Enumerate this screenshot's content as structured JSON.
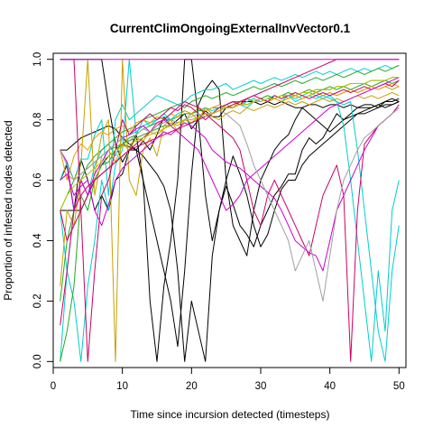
{
  "chart_data": {
    "type": "line",
    "title": "CurrentClimOngoingExternalInvVector0.1",
    "xlabel": "Time since incursion detected (timesteps)",
    "ylabel": "Proportion of infested nodes detected",
    "xlim": [
      0,
      51
    ],
    "ylim": [
      -0.02,
      1.02
    ],
    "xticks": [
      0,
      10,
      20,
      30,
      40,
      50
    ],
    "yticks": [
      0.0,
      0.2,
      0.4,
      0.6,
      0.8,
      1.0
    ],
    "x": [
      1,
      2,
      3,
      4,
      5,
      6,
      7,
      8,
      9,
      10,
      11,
      12,
      13,
      14,
      15,
      16,
      17,
      18,
      19,
      20,
      21,
      22,
      23,
      24,
      25,
      26,
      27,
      28,
      29,
      30,
      31,
      32,
      33,
      34,
      35,
      36,
      37,
      38,
      39,
      40,
      41,
      42,
      43,
      44,
      45,
      46,
      47,
      48,
      49,
      50
    ],
    "grid": false,
    "legend": "none",
    "series": [
      {
        "color": "#000000",
        "values": [
          1.0,
          1.0,
          1.0,
          1.0,
          1.0,
          1.0,
          1.0,
          0.85,
          0.72,
          0.66,
          0.7,
          0.7,
          0.73,
          0.7,
          0.75,
          0.81,
          0.78,
          0.8,
          0.82,
          0.77,
          0.8,
          0.83,
          0.81,
          0.81,
          0.84,
          0.84,
          0.86,
          0.86,
          0.86,
          0.85,
          0.86,
          0.85,
          0.86,
          0.85,
          0.84,
          0.84,
          0.85,
          0.85,
          0.84,
          0.85,
          0.85,
          0.84,
          0.85,
          0.84,
          0.84,
          0.84,
          0.85,
          0.84,
          0.85,
          0.86
        ]
      },
      {
        "color": "#000000",
        "values": [
          0.5,
          0.5,
          0.5,
          0.67,
          0.6,
          0.5,
          0.55,
          0.5,
          0.6,
          0.62,
          0.7,
          0.75,
          0.6,
          0.2,
          0.0,
          0.25,
          0.4,
          0.6,
          1.0,
          1.0,
          0.8,
          0.55,
          0.4,
          0.5,
          0.58,
          0.52,
          0.45,
          0.42,
          0.38,
          0.45,
          0.5,
          0.55,
          0.58,
          0.62,
          0.62,
          0.7,
          0.74,
          0.72,
          0.74,
          0.78,
          0.82,
          0.8,
          0.82,
          0.84,
          0.85,
          0.85,
          0.84,
          0.86,
          0.87,
          0.86
        ]
      },
      {
        "color": "#000000",
        "values": [
          0.6,
          0.65,
          0.5,
          0.5,
          0.55,
          0.6,
          0.65,
          0.68,
          0.7,
          0.72,
          0.71,
          0.7,
          0.68,
          0.65,
          0.62,
          0.58,
          0.5,
          0.3,
          0.0,
          0.2,
          0.1,
          0.0,
          0.35,
          0.5,
          0.6,
          0.68,
          0.62,
          0.55,
          0.45,
          0.38,
          0.42,
          0.5,
          0.57,
          0.6,
          0.6,
          0.65,
          0.68,
          0.7,
          0.72,
          0.74,
          0.76,
          0.78,
          0.8,
          0.82,
          0.82,
          0.83,
          0.84,
          0.85,
          0.85,
          0.86
        ]
      },
      {
        "color": "#000000",
        "values": [
          0.7,
          0.7,
          0.72,
          0.74,
          0.75,
          0.76,
          0.77,
          0.78,
          0.77,
          0.74,
          0.72,
          0.7,
          0.6,
          0.5,
          0.4,
          0.3,
          0.2,
          0.05,
          0.3,
          0.62,
          0.85,
          0.9,
          0.93,
          0.9,
          0.6,
          0.45,
          0.4,
          0.35,
          0.5,
          0.6,
          0.65,
          0.7,
          0.73,
          0.75,
          0.8,
          0.84,
          0.82,
          0.8,
          0.78,
          0.76,
          0.78,
          0.8,
          0.81,
          0.82,
          0.83,
          0.84,
          0.85,
          0.86,
          0.86,
          0.87
        ]
      },
      {
        "color": "#00CDCD",
        "values": [
          0.6,
          0.66,
          0.6,
          0.67,
          0.67,
          0.75,
          0.8,
          0.55,
          0.8,
          0.85,
          0.8,
          0.82,
          0.84,
          0.86,
          0.88,
          0.87,
          0.86,
          0.85,
          0.86,
          0.88,
          0.89,
          0.9,
          0.9,
          0.91,
          0.92,
          0.9,
          0.91,
          0.92,
          0.93,
          0.92,
          0.93,
          0.94,
          0.93,
          0.94,
          0.95,
          0.94,
          0.95,
          0.96,
          0.95,
          0.96,
          0.95,
          0.96,
          0.97,
          0.96,
          0.97,
          0.96,
          0.97,
          0.98,
          0.97,
          0.98
        ]
      },
      {
        "color": "#00CDCD",
        "values": [
          0.5,
          0.3,
          0.2,
          0.0,
          0.25,
          0.4,
          0.6,
          0.5,
          0.65,
          0.7,
          1.0,
          0.75,
          0.8,
          0.78,
          0.8,
          0.82,
          0.8,
          0.79,
          0.8,
          0.82,
          0.83,
          0.84,
          0.82,
          0.83,
          0.85,
          0.86,
          0.85,
          0.84,
          0.86,
          0.87,
          0.88,
          0.87,
          0.86,
          0.88,
          0.87,
          0.88,
          0.89,
          0.88,
          0.87,
          0.88,
          0.86,
          0.78,
          0.6,
          0.4,
          0.2,
          0.0,
          0.3,
          0.1,
          0.5,
          0.6
        ]
      },
      {
        "color": "#00CDCD",
        "values": [
          0.0,
          0.3,
          0.5,
          0.6,
          0.55,
          0.65,
          0.7,
          0.72,
          0.68,
          0.74,
          0.75,
          0.76,
          0.78,
          0.79,
          0.8,
          0.81,
          0.8,
          0.82,
          0.83,
          0.82,
          0.83,
          0.84,
          0.83,
          0.84,
          0.85,
          0.86,
          0.85,
          0.86,
          0.87,
          0.86,
          0.87,
          0.88,
          0.87,
          0.88,
          0.86,
          0.87,
          0.88,
          0.87,
          0.88,
          0.87,
          0.86,
          0.85,
          0.86,
          0.7,
          0.5,
          0.3,
          0.1,
          0.0,
          0.3,
          0.45
        ]
      },
      {
        "color": "#22AA22",
        "values": [
          0.2,
          0.4,
          0.5,
          0.6,
          0.65,
          0.68,
          0.7,
          0.72,
          0.74,
          0.76,
          0.77,
          0.78,
          0.8,
          0.81,
          0.82,
          0.83,
          0.84,
          0.85,
          0.84,
          0.86,
          0.87,
          0.88,
          0.87,
          0.88,
          0.89,
          0.88,
          0.89,
          0.9,
          0.91,
          0.9,
          0.91,
          0.92,
          0.91,
          0.92,
          0.93,
          0.92,
          0.93,
          0.94,
          0.93,
          0.94,
          0.95,
          0.94,
          0.95,
          0.96,
          0.95,
          0.96,
          0.97,
          0.96,
          0.97,
          0.98
        ]
      },
      {
        "color": "#22AA22",
        "values": [
          0.0,
          0.1,
          0.25,
          0.55,
          0.5,
          0.6,
          0.65,
          0.66,
          0.7,
          0.72,
          0.74,
          0.75,
          0.77,
          0.78,
          0.79,
          0.8,
          0.8,
          0.81,
          0.82,
          0.82,
          0.83,
          0.83,
          0.84,
          0.84,
          0.85,
          0.86,
          0.86,
          0.87,
          0.86,
          0.87,
          0.88,
          0.87,
          0.88,
          0.89,
          0.88,
          0.89,
          0.9,
          0.89,
          0.9,
          0.91,
          0.9,
          0.91,
          0.9,
          0.91,
          0.92,
          0.91,
          0.92,
          0.93,
          0.92,
          0.93
        ]
      },
      {
        "color": "#22AA22",
        "values": [
          0.5,
          0.55,
          0.6,
          0.62,
          0.64,
          0.66,
          0.68,
          0.7,
          0.71,
          0.72,
          0.73,
          0.74,
          0.75,
          0.76,
          0.77,
          0.78,
          0.78,
          0.79,
          0.8,
          0.8,
          0.81,
          0.82,
          0.82,
          0.83,
          0.84,
          0.84,
          0.85,
          0.85,
          0.86,
          0.86,
          0.87,
          0.87,
          0.88,
          0.88,
          0.88,
          0.89,
          0.89,
          0.9,
          0.9,
          0.9,
          0.91,
          0.91,
          0.92,
          0.92,
          0.92,
          0.93,
          0.93,
          0.93,
          0.94,
          0.94
        ]
      },
      {
        "color": "#C8A000",
        "values": [
          0.25,
          0.5,
          0.45,
          0.6,
          0.55,
          0.62,
          0.75,
          0.8,
          0.0,
          1.0,
          0.6,
          0.55,
          0.7,
          0.74,
          0.68,
          0.78,
          0.8,
          0.76,
          0.8,
          0.82,
          0.8,
          0.84,
          0.82,
          0.83,
          0.85,
          0.84,
          0.86,
          0.85,
          0.86,
          0.87,
          0.86,
          0.87,
          0.88,
          0.87,
          0.88,
          0.87,
          0.88,
          0.89,
          0.88,
          0.89,
          0.88,
          0.89,
          0.9,
          0.89,
          0.9,
          0.91,
          0.9,
          0.91,
          0.9,
          0.91
        ]
      },
      {
        "color": "#C8A000",
        "values": [
          0.6,
          0.62,
          0.6,
          0.65,
          1.0,
          0.55,
          0.68,
          0.7,
          0.66,
          0.72,
          0.7,
          0.74,
          0.73,
          0.76,
          0.75,
          0.77,
          0.79,
          0.78,
          0.8,
          0.79,
          0.81,
          0.82,
          0.81,
          0.8,
          0.82,
          0.83,
          0.82,
          0.84,
          0.83,
          0.84,
          0.85,
          0.84,
          0.85,
          0.86,
          0.85,
          0.86,
          0.85,
          0.86,
          0.87,
          0.86,
          0.87,
          0.86,
          0.87,
          0.88,
          0.87,
          0.88,
          0.87,
          0.88,
          0.89,
          0.88
        ]
      },
      {
        "color": "#E8A000",
        "values": [
          0.7,
          0.6,
          0.68,
          0.72,
          0.7,
          0.74,
          0.76,
          0.75,
          0.77,
          0.78,
          0.76,
          0.79,
          0.8,
          0.79,
          0.81,
          0.8,
          0.82,
          0.81,
          0.83,
          0.82,
          0.84,
          0.83,
          0.84,
          0.85,
          0.84,
          0.85,
          0.86,
          0.85,
          0.86,
          0.87,
          0.86,
          0.87,
          0.86,
          0.87,
          0.88,
          0.87,
          0.88,
          0.89,
          0.88,
          0.89,
          0.88,
          0.89,
          0.9,
          0.89,
          0.9,
          0.91,
          0.9,
          0.91,
          0.92,
          0.91
        ]
      },
      {
        "color": "#CC0066",
        "values": [
          1.0,
          1.0,
          1.0,
          0.5,
          0.0,
          0.3,
          0.55,
          0.6,
          0.7,
          0.8,
          0.75,
          0.78,
          0.8,
          0.82,
          0.8,
          0.82,
          0.84,
          0.83,
          0.85,
          0.84,
          0.82,
          0.8,
          0.82,
          0.84,
          0.85,
          0.86,
          0.85,
          0.87,
          0.88,
          0.87,
          0.86,
          0.88,
          0.87,
          0.88,
          0.89,
          0.88,
          0.87,
          0.88,
          0.89,
          0.88,
          0.89,
          0.9,
          0.89,
          0.9,
          0.91,
          0.9,
          0.91,
          0.92,
          0.91,
          0.93
        ]
      },
      {
        "color": "#CC0066",
        "values": [
          0.5,
          0.4,
          0.45,
          0.5,
          0.55,
          0.6,
          0.62,
          0.64,
          0.66,
          0.68,
          0.7,
          0.72,
          0.74,
          0.76,
          0.78,
          0.8,
          0.82,
          0.84,
          0.86,
          0.85,
          0.84,
          0.82,
          0.8,
          0.78,
          0.76,
          0.74,
          0.7,
          0.6,
          0.5,
          0.45,
          0.55,
          0.6,
          0.55,
          0.5,
          0.45,
          0.4,
          0.35,
          0.45,
          0.55,
          0.6,
          0.65,
          0.55,
          0.0,
          0.5,
          0.72,
          0.75,
          0.78,
          0.8,
          0.82,
          0.85
        ]
      },
      {
        "color": "#CC0066",
        "values": [
          0.12,
          0.3,
          0.5,
          0.55,
          0.58,
          0.6,
          0.62,
          0.64,
          0.66,
          0.68,
          0.7,
          0.71,
          0.72,
          0.73,
          0.74,
          0.75,
          0.76,
          0.77,
          0.78,
          0.79,
          0.8,
          0.81,
          0.82,
          0.83,
          0.84,
          0.85,
          0.86,
          0.87,
          0.88,
          0.89,
          0.9,
          0.91,
          0.92,
          0.93,
          0.94,
          0.95,
          0.96,
          0.97,
          0.98,
          0.99,
          1.0,
          1.0,
          1.0,
          1.0,
          1.0,
          1.0,
          1.0,
          1.0,
          1.0,
          1.0
        ]
      },
      {
        "color": "#CC00CC",
        "values": [
          1.0,
          1.0,
          1.0,
          1.0,
          1.0,
          1.0,
          1.0,
          1.0,
          1.0,
          1.0,
          1.0,
          1.0,
          1.0,
          1.0,
          1.0,
          1.0,
          1.0,
          1.0,
          1.0,
          1.0,
          1.0,
          1.0,
          1.0,
          1.0,
          1.0,
          1.0,
          1.0,
          1.0,
          1.0,
          1.0,
          1.0,
          1.0,
          1.0,
          1.0,
          1.0,
          1.0,
          1.0,
          1.0,
          1.0,
          1.0,
          1.0,
          1.0,
          1.0,
          1.0,
          1.0,
          1.0,
          1.0,
          1.0,
          1.0,
          1.0
        ]
      },
      {
        "color": "#CC00CC",
        "values": [
          0.7,
          0.66,
          0.5,
          0.6,
          0.55,
          0.62,
          0.66,
          0.7,
          0.72,
          0.74,
          0.75,
          0.77,
          0.78,
          0.76,
          0.79,
          0.8,
          0.78,
          0.76,
          0.74,
          0.72,
          0.7,
          0.65,
          0.6,
          0.55,
          0.5,
          0.52,
          0.55,
          0.6,
          0.62,
          0.64,
          0.66,
          0.68,
          0.7,
          0.72,
          0.74,
          0.76,
          0.78,
          0.8,
          0.82,
          0.84,
          0.85,
          0.86,
          0.87,
          0.88,
          0.89,
          0.9,
          0.91,
          0.92,
          0.93,
          0.94
        ]
      },
      {
        "color": "#CC00CC",
        "values": [
          0.6,
          0.62,
          0.55,
          0.58,
          0.6,
          0.5,
          0.45,
          0.52,
          0.6,
          0.64,
          0.66,
          0.68,
          0.7,
          0.72,
          0.74,
          0.76,
          0.75,
          0.77,
          0.79,
          0.78,
          0.76,
          0.74,
          0.7,
          0.68,
          0.66,
          0.65,
          0.64,
          0.62,
          0.6,
          0.58,
          0.56,
          0.54,
          0.5,
          0.45,
          0.4,
          0.38,
          0.36,
          0.35,
          0.3,
          0.4,
          0.5,
          0.55,
          0.6,
          0.65,
          0.7,
          0.74,
          0.78,
          0.8,
          0.82,
          0.84
        ]
      },
      {
        "color": "#A0A0A0",
        "values": [
          0.7,
          0.65,
          0.6,
          0.62,
          0.64,
          0.66,
          0.68,
          0.7,
          0.72,
          0.74,
          0.73,
          0.75,
          0.77,
          0.76,
          0.78,
          0.79,
          0.8,
          0.79,
          0.8,
          0.81,
          0.82,
          0.81,
          0.82,
          0.83,
          0.82,
          0.8,
          0.78,
          0.72,
          0.65,
          0.6,
          0.55,
          0.5,
          0.45,
          0.4,
          0.3,
          0.35,
          0.4,
          0.3,
          0.2,
          0.35,
          0.5,
          0.6,
          0.65,
          0.7,
          0.74,
          0.76,
          0.78,
          0.8,
          0.82,
          0.84
        ]
      },
      {
        "color": "#C0C000",
        "values": [
          0.5,
          0.55,
          0.58,
          0.6,
          0.62,
          0.64,
          0.66,
          0.68,
          0.7,
          0.71,
          0.72,
          0.73,
          0.74,
          0.75,
          0.76,
          0.77,
          0.78,
          0.79,
          0.8,
          0.8,
          0.81,
          0.82,
          0.82,
          0.83,
          0.84,
          0.84,
          0.85,
          0.85,
          0.86,
          0.86,
          0.87,
          0.87,
          0.88,
          0.88,
          0.88,
          0.89,
          0.89,
          0.9,
          0.9,
          0.9,
          0.91,
          0.91,
          0.92,
          0.92,
          0.92,
          0.93,
          0.93,
          0.93,
          0.94,
          0.94
        ]
      }
    ]
  }
}
